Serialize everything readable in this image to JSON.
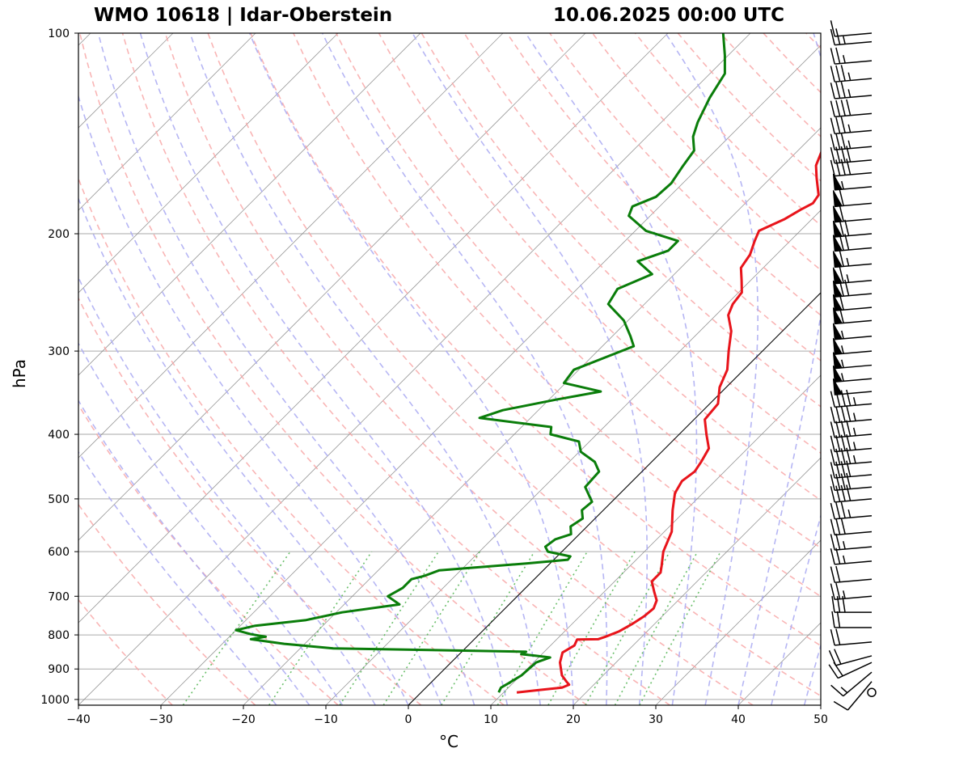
{
  "header": {
    "station": "WMO 10618 | Idar-Oberstein",
    "valid_time": "10.06.2025 00:00 UTC"
  },
  "chart_data": {
    "type": "skew-t",
    "xlabel": "°C",
    "ylabel": "hPa",
    "xlim": [
      -40,
      50
    ],
    "ylim": [
      1020,
      100
    ],
    "x_ticks": [
      -40,
      -30,
      -20,
      -10,
      0,
      10,
      20,
      30,
      40,
      50
    ],
    "x_tick_labels": [
      "−40",
      "−30",
      "−20",
      "−10",
      "0",
      "10",
      "20",
      "30",
      "40",
      "50"
    ],
    "y_ticks": [
      100,
      200,
      300,
      400,
      500,
      600,
      700,
      800,
      900,
      1000
    ],
    "y_tick_labels": [
      "100",
      "200",
      "300",
      "400",
      "500",
      "600",
      "700",
      "800",
      "900",
      "1000"
    ],
    "grid": true,
    "colors": {
      "temperature": "#e8141b",
      "dewpoint": "#0a7d0a",
      "dry_adiabats": "#f7a3a3",
      "moist_adiabats": "#a9a9f2",
      "mixing_ratio": "#5bb85b",
      "isotherms": "#888888",
      "zero_isotherm": "#000000"
    },
    "temperature": [
      [
        976,
        11.6
      ],
      [
        968,
        14.0
      ],
      [
        960,
        16.5
      ],
      [
        950,
        17.0
      ],
      [
        940,
        16.3
      ],
      [
        920,
        15.0
      ],
      [
        880,
        13.2
      ],
      [
        850,
        12.3
      ],
      [
        830,
        12.9
      ],
      [
        813,
        12.5
      ],
      [
        812,
        15.0
      ],
      [
        805,
        15.6
      ],
      [
        790,
        16.6
      ],
      [
        770,
        17.3
      ],
      [
        750,
        17.8
      ],
      [
        730,
        18.0
      ],
      [
        710,
        17.4
      ],
      [
        690,
        16.1
      ],
      [
        665,
        14.5
      ],
      [
        645,
        14.5
      ],
      [
        630,
        13.8
      ],
      [
        600,
        12.3
      ],
      [
        560,
        10.9
      ],
      [
        520,
        8.4
      ],
      [
        490,
        6.6
      ],
      [
        470,
        6.0
      ],
      [
        455,
        6.4
      ],
      [
        440,
        6.0
      ],
      [
        420,
        5.3
      ],
      [
        400,
        3.3
      ],
      [
        380,
        1.3
      ],
      [
        360,
        1.0
      ],
      [
        340,
        -0.8
      ],
      [
        320,
        -2.0
      ],
      [
        300,
        -4.1
      ],
      [
        280,
        -6.2
      ],
      [
        265,
        -8.5
      ],
      [
        255,
        -9.3
      ],
      [
        245,
        -9.6
      ],
      [
        235,
        -11.1
      ],
      [
        225,
        -12.7
      ],
      [
        215,
        -13.2
      ],
      [
        205,
        -14.3
      ],
      [
        198,
        -15.0
      ],
      [
        190,
        -13.3
      ],
      [
        184,
        -12.5
      ],
      [
        180,
        -11.8
      ],
      [
        175,
        -12.1
      ],
      [
        165,
        -14.4
      ],
      [
        158,
        -16.0
      ],
      [
        150,
        -17.1
      ],
      [
        143,
        -17.8
      ],
      [
        136,
        -20.0
      ],
      [
        128,
        -21.8
      ],
      [
        122,
        -23.8
      ],
      [
        115,
        -26.0
      ],
      [
        108,
        -27.6
      ],
      [
        100,
        -29.6
      ]
    ],
    "dewpoint": [
      [
        976,
        9.4
      ],
      [
        960,
        9.1
      ],
      [
        945,
        9.5
      ],
      [
        920,
        10.1
      ],
      [
        900,
        10.2
      ],
      [
        880,
        10.3
      ],
      [
        865,
        11.4
      ],
      [
        860,
        9.5
      ],
      [
        855,
        7.5
      ],
      [
        848,
        7.8
      ],
      [
        843,
        -4.1
      ],
      [
        838,
        -16.0
      ],
      [
        825,
        -22.5
      ],
      [
        812,
        -27.1
      ],
      [
        805,
        -25.6
      ],
      [
        798,
        -27.7
      ],
      [
        787,
        -30.0
      ],
      [
        775,
        -28.2
      ],
      [
        760,
        -22.7
      ],
      [
        740,
        -19.3
      ],
      [
        720,
        -13.3
      ],
      [
        700,
        -15.7
      ],
      [
        680,
        -14.9
      ],
      [
        660,
        -14.9
      ],
      [
        652,
        -13.7
      ],
      [
        640,
        -12.6
      ],
      [
        625,
        -2.9
      ],
      [
        617,
        1.7
      ],
      [
        610,
        1.6
      ],
      [
        600,
        -1.7
      ],
      [
        590,
        -2.6
      ],
      [
        575,
        -2.3
      ],
      [
        565,
        -1.0
      ],
      [
        550,
        -2.0
      ],
      [
        535,
        -1.5
      ],
      [
        520,
        -2.6
      ],
      [
        505,
        -2.4
      ],
      [
        480,
        -5.0
      ],
      [
        455,
        -5.2
      ],
      [
        440,
        -6.9
      ],
      [
        425,
        -9.8
      ],
      [
        410,
        -11.3
      ],
      [
        400,
        -15.6
      ],
      [
        390,
        -16.4
      ],
      [
        378,
        -26.2
      ],
      [
        368,
        -24.3
      ],
      [
        355,
        -19.2
      ],
      [
        345,
        -14.7
      ],
      [
        335,
        -20.2
      ],
      [
        320,
        -20.6
      ],
      [
        305,
        -18.0
      ],
      [
        295,
        -16.2
      ],
      [
        285,
        -17.8
      ],
      [
        270,
        -20.5
      ],
      [
        255,
        -24.4
      ],
      [
        242,
        -25.1
      ],
      [
        230,
        -22.7
      ],
      [
        220,
        -26.0
      ],
      [
        212,
        -23.6
      ],
      [
        205,
        -23.6
      ],
      [
        198,
        -28.7
      ],
      [
        188,
        -32.6
      ],
      [
        182,
        -33.3
      ],
      [
        176,
        -31.6
      ],
      [
        168,
        -31.4
      ],
      [
        158,
        -32.1
      ],
      [
        150,
        -32.6
      ],
      [
        143,
        -34.4
      ],
      [
        136,
        -35.6
      ],
      [
        125,
        -37.1
      ],
      [
        115,
        -38.2
      ],
      [
        108,
        -40.4
      ],
      [
        100,
        -43.3
      ]
    ],
    "wind_barbs": [
      [
        976,
        0,
        0
      ],
      [
        940,
        220,
        10
      ],
      [
        910,
        230,
        15
      ],
      [
        880,
        245,
        20
      ],
      [
        860,
        255,
        20
      ],
      [
        820,
        265,
        20
      ],
      [
        780,
        270,
        20
      ],
      [
        740,
        270,
        30
      ],
      [
        700,
        265,
        25
      ],
      [
        660,
        265,
        20
      ],
      [
        620,
        265,
        25
      ],
      [
        590,
        265,
        25
      ],
      [
        560,
        265,
        30
      ],
      [
        530,
        265,
        35
      ],
      [
        500,
        265,
        40
      ],
      [
        480,
        265,
        40
      ],
      [
        460,
        265,
        40
      ],
      [
        440,
        265,
        45
      ],
      [
        420,
        265,
        45
      ],
      [
        400,
        265,
        45
      ],
      [
        380,
        265,
        45
      ],
      [
        360,
        265,
        45
      ],
      [
        345,
        265,
        50
      ],
      [
        330,
        265,
        55
      ],
      [
        315,
        265,
        55
      ],
      [
        300,
        265,
        55
      ],
      [
        285,
        265,
        55
      ],
      [
        270,
        265,
        60
      ],
      [
        258,
        265,
        60
      ],
      [
        246,
        265,
        70
      ],
      [
        235,
        265,
        65
      ],
      [
        222,
        265,
        65
      ],
      [
        210,
        265,
        70
      ],
      [
        200,
        265,
        70
      ],
      [
        190,
        265,
        60
      ],
      [
        180,
        265,
        60
      ],
      [
        170,
        265,
        55
      ],
      [
        162,
        265,
        40
      ],
      [
        155,
        265,
        40
      ],
      [
        148,
        265,
        35
      ],
      [
        140,
        265,
        35
      ],
      [
        132,
        265,
        40
      ],
      [
        124,
        265,
        35
      ],
      [
        117,
        265,
        35
      ],
      [
        110,
        265,
        25
      ],
      [
        103,
        265,
        25
      ],
      [
        100,
        265,
        10
      ]
    ]
  }
}
